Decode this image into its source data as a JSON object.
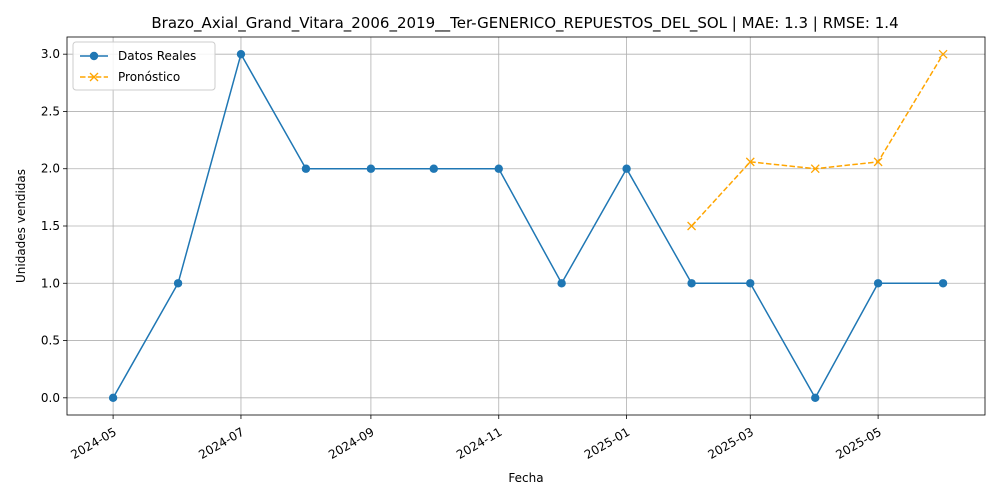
{
  "chart_data": {
    "type": "line",
    "title": "Brazo_Axial_Grand_Vitara_2006_2019__Ter-GENERICO_REPUESTOS_DEL_SOL | MAE: 1.3 | RMSE: 1.4",
    "xlabel": "Fecha",
    "ylabel": "Unidades vendidas",
    "xlim": [
      "2024-04-09",
      "2025-06-21"
    ],
    "ylim": [
      -0.15,
      3.15
    ],
    "x_ticks": [
      "2024-05",
      "2024-07",
      "2024-09",
      "2024-11",
      "2025-01",
      "2025-03",
      "2025-05"
    ],
    "y_ticks": [
      "0.0",
      "0.5",
      "1.0",
      "1.5",
      "2.0",
      "2.5",
      "3.0"
    ],
    "grid": true,
    "legend_position": "top-left",
    "series": [
      {
        "name": "Datos Reales",
        "color": "#1f77b4",
        "style": "solid",
        "marker": "circle",
        "x": [
          "2024-05-01",
          "2024-06-01",
          "2024-07-01",
          "2024-08-01",
          "2024-09-01",
          "2024-10-01",
          "2024-11-01",
          "2024-12-01",
          "2025-01-01",
          "2025-02-01",
          "2025-03-01",
          "2025-04-01",
          "2025-05-01",
          "2025-06-01"
        ],
        "values": [
          0,
          1,
          3,
          2,
          2,
          2,
          2,
          1,
          2,
          1,
          1,
          0,
          1,
          1
        ]
      },
      {
        "name": "Pronóstico",
        "color": "#ffa500",
        "style": "dashed",
        "marker": "x",
        "x": [
          "2025-02-01",
          "2025-03-01",
          "2025-04-01",
          "2025-05-01",
          "2025-06-01"
        ],
        "values": [
          1.5,
          2.06,
          2.0,
          2.06,
          3.0
        ]
      }
    ]
  }
}
